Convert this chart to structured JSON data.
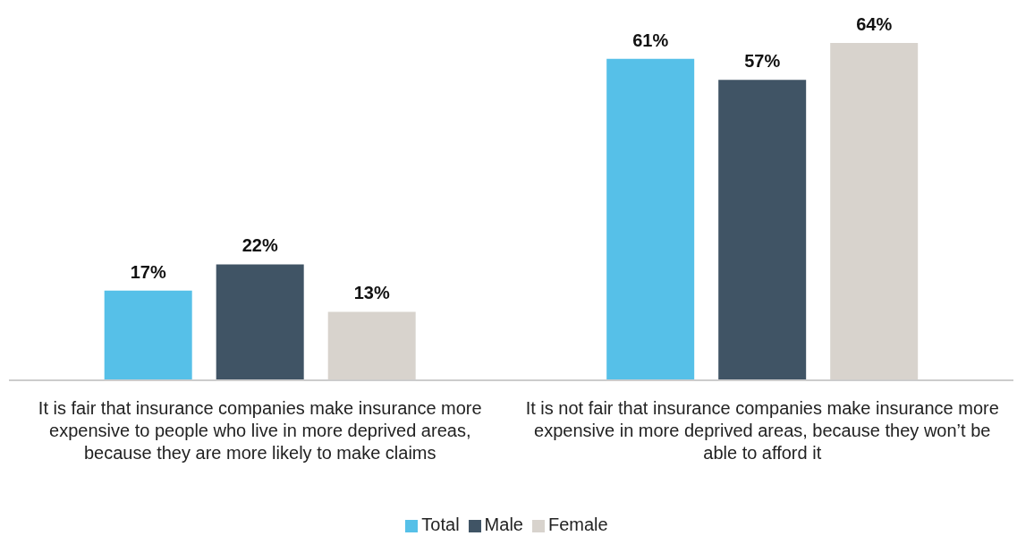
{
  "chart_data": {
    "type": "bar",
    "categories": [
      "It is fair that insurance companies make insurance more expensive to people who live in more deprived areas, because they are more likely to make claims",
      "It is not fair that insurance companies make insurance more expensive in more deprived areas, because they won’t be able to afford it"
    ],
    "series": [
      {
        "name": "Total",
        "color": "#56c0e8",
        "values": [
          17,
          61
        ],
        "value_labels": [
          "17%",
          "61%"
        ]
      },
      {
        "name": "Male",
        "color": "#405465",
        "values": [
          22,
          57
        ],
        "value_labels": [
          "22%",
          "57%"
        ]
      },
      {
        "name": "Female",
        "color": "#d8d3cd",
        "values": [
          13,
          64
        ],
        "value_labels": [
          "13%",
          "64%"
        ]
      }
    ],
    "legend": "bottom"
  }
}
